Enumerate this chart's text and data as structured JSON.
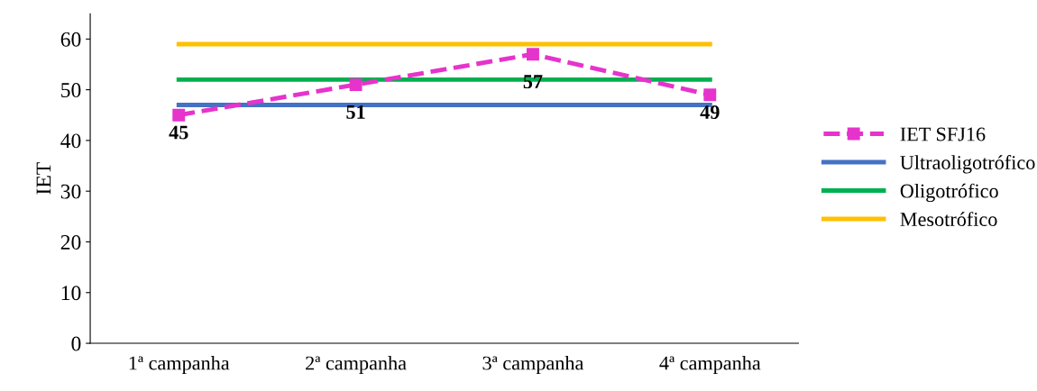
{
  "chart_data": {
    "type": "line",
    "ylabel": "IET",
    "categories": [
      "1ª campanha",
      "2ª campanha",
      "3ª campanha",
      "4ª campanha"
    ],
    "series": [
      {
        "name": "IET SFJ16",
        "color": "#e633cc",
        "values": [
          45,
          51,
          57,
          49
        ],
        "marker": "square",
        "line_style": "dashed",
        "value_labels": [
          "45",
          "51",
          "57",
          "49"
        ]
      },
      {
        "name": "Ultraoligotrófico",
        "color": "#4472c4",
        "values": [
          47,
          47,
          47,
          47
        ]
      },
      {
        "name": "Oligotrófico",
        "color": "#00b050",
        "values": [
          52,
          52,
          52,
          52
        ]
      },
      {
        "name": "Mesotrófico",
        "color": "#ffc000",
        "values": [
          59,
          59,
          59,
          59
        ]
      }
    ],
    "ylim": [
      0,
      65
    ],
    "yticks": [
      0,
      10,
      20,
      30,
      40,
      50,
      60
    ],
    "grid": false,
    "legend": "right"
  }
}
